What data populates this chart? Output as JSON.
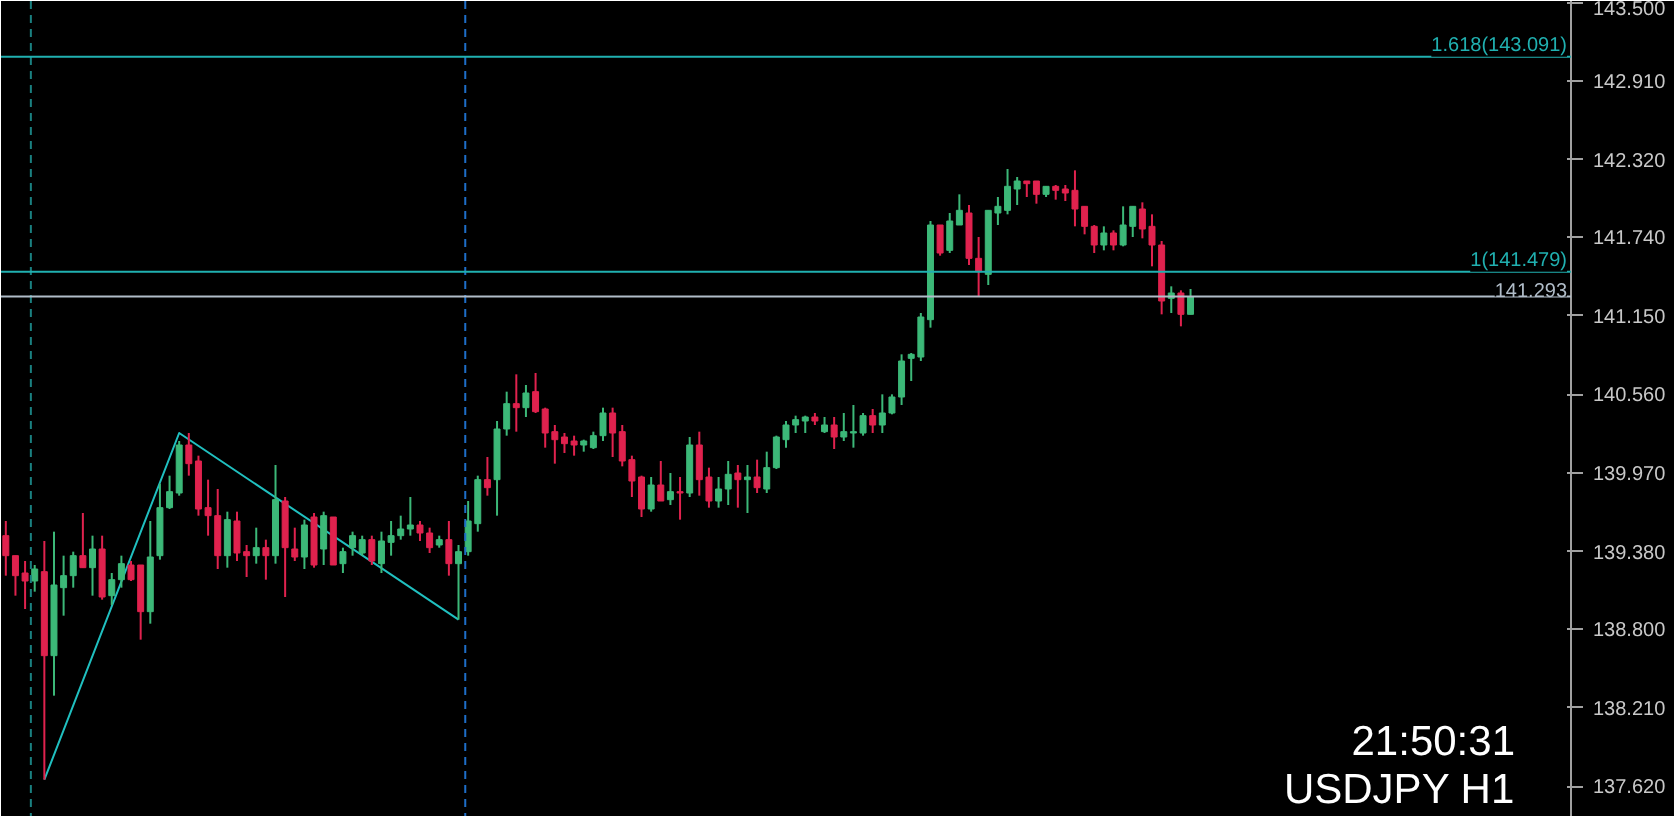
{
  "chart_data": {
    "type": "candlestick",
    "categories": [
      null,
      null,
      null,
      null,
      null,
      null,
      null,
      null,
      null,
      null,
      null,
      null,
      null,
      null,
      null,
      null,
      null,
      null,
      null,
      null,
      null,
      null,
      null,
      null,
      null,
      null,
      null,
      null,
      null,
      null,
      null,
      null,
      null,
      null,
      null,
      null,
      null,
      null,
      null,
      null,
      null,
      null,
      null,
      null,
      null,
      null,
      null,
      null,
      null,
      null,
      null,
      null,
      null,
      null,
      null,
      null,
      null,
      null,
      null,
      null,
      null,
      null,
      null,
      null,
      null,
      null,
      null,
      null,
      null,
      null,
      null,
      null,
      null,
      null,
      null,
      null,
      null,
      null,
      null,
      null,
      null,
      null,
      null,
      null,
      null,
      null,
      null,
      null,
      null,
      null,
      null,
      null,
      null,
      null,
      null,
      null,
      null,
      null,
      null,
      null,
      null,
      null,
      null,
      null,
      null,
      null,
      null,
      null,
      null,
      null,
      null,
      null,
      null,
      null,
      null,
      null,
      null,
      null,
      null,
      null,
      null,
      null,
      null,
      null,
      null,
      null,
      null,
      null,
      null,
      null,
      null,
      null,
      null,
      null,
      null,
      null,
      null,
      null,
      null,
      null,
      null,
      null,
      null,
      null,
      null,
      null,
      null,
      null,
      null,
      null,
      null,
      null,
      null,
      null,
      null,
      null,
      null,
      null,
      null,
      null,
      null,
      null,
      null
    ],
    "ohlc": [
      [
        139.5,
        139.61,
        139.2,
        139.35
      ],
      [
        139.35,
        139.35,
        139.05,
        139.2
      ],
      [
        139.22,
        139.31,
        138.95,
        139.16
      ],
      [
        139.16,
        139.28,
        139.08,
        139.25
      ],
      [
        139.23,
        139.46,
        137.67,
        138.6
      ],
      [
        138.6,
        139.53,
        138.3,
        139.13
      ],
      [
        139.11,
        139.35,
        138.9,
        139.2
      ],
      [
        139.2,
        139.38,
        139.11,
        139.35
      ],
      [
        139.35,
        139.67,
        139.26,
        139.26
      ],
      [
        139.26,
        139.5,
        139.05,
        139.4
      ],
      [
        139.4,
        139.5,
        139.02,
        139.04
      ],
      [
        139.05,
        139.22,
        138.98,
        139.17
      ],
      [
        139.17,
        139.35,
        139.11,
        139.29
      ],
      [
        139.28,
        139.31,
        139.16,
        139.17
      ],
      [
        139.28,
        139.28,
        138.72,
        138.93
      ],
      [
        138.93,
        139.61,
        138.84,
        139.34
      ],
      [
        139.35,
        139.89,
        139.32,
        139.71
      ],
      [
        139.71,
        139.95,
        139.7,
        139.83
      ],
      [
        139.82,
        140.21,
        139.8,
        140.18
      ],
      [
        140.18,
        140.27,
        139.95,
        140.04
      ],
      [
        140.06,
        140.1,
        139.65,
        139.7
      ],
      [
        139.71,
        139.92,
        139.5,
        139.65
      ],
      [
        139.65,
        139.85,
        139.25,
        139.35
      ],
      [
        139.35,
        139.68,
        139.26,
        139.62
      ],
      [
        139.61,
        139.68,
        139.31,
        139.37
      ],
      [
        139.38,
        139.43,
        139.19,
        139.35
      ],
      [
        139.35,
        139.56,
        139.29,
        139.41
      ],
      [
        139.41,
        139.47,
        139.17,
        139.35
      ],
      [
        139.35,
        140.03,
        139.29,
        139.77
      ],
      [
        139.76,
        139.79,
        139.04,
        139.41
      ],
      [
        139.4,
        139.56,
        139.31,
        139.34
      ],
      [
        139.34,
        139.62,
        139.25,
        139.58
      ],
      [
        139.64,
        139.67,
        139.26,
        139.28
      ],
      [
        139.4,
        139.68,
        139.28,
        139.65
      ],
      [
        139.64,
        139.64,
        139.28,
        139.28
      ],
      [
        139.29,
        139.41,
        139.22,
        139.38
      ],
      [
        139.41,
        139.53,
        139.35,
        139.5
      ],
      [
        139.37,
        139.5,
        139.35,
        139.47
      ],
      [
        139.47,
        139.5,
        139.28,
        139.31
      ],
      [
        139.29,
        139.53,
        139.22,
        139.46
      ],
      [
        139.45,
        139.61,
        139.35,
        139.5
      ],
      [
        139.5,
        139.65,
        139.47,
        139.55
      ],
      [
        139.55,
        139.79,
        139.5,
        139.58
      ],
      [
        139.58,
        139.61,
        139.46,
        139.52
      ],
      [
        139.52,
        139.56,
        139.37,
        139.41
      ],
      [
        139.43,
        139.5,
        139.41,
        139.47
      ],
      [
        139.47,
        139.61,
        139.2,
        139.29
      ],
      [
        139.29,
        139.43,
        138.87,
        139.38
      ],
      [
        139.38,
        139.76,
        139.35,
        139.61
      ],
      [
        139.59,
        139.95,
        139.53,
        139.92
      ],
      [
        139.92,
        140.09,
        139.8,
        139.86
      ],
      [
        139.92,
        140.36,
        139.65,
        140.3
      ],
      [
        140.3,
        140.58,
        140.25,
        140.49
      ],
      [
        140.49,
        140.71,
        140.28,
        140.46
      ],
      [
        140.46,
        140.63,
        140.39,
        140.57
      ],
      [
        140.58,
        140.72,
        140.42,
        140.43
      ],
      [
        140.45,
        140.46,
        140.16,
        140.27
      ],
      [
        140.28,
        140.33,
        140.04,
        140.22
      ],
      [
        140.24,
        140.27,
        140.12,
        140.19
      ],
      [
        140.21,
        140.25,
        140.1,
        140.18
      ],
      [
        140.18,
        140.22,
        140.13,
        140.21
      ],
      [
        140.16,
        140.28,
        140.15,
        140.25
      ],
      [
        140.25,
        140.46,
        140.21,
        140.42
      ],
      [
        140.42,
        140.46,
        140.09,
        140.27
      ],
      [
        140.28,
        140.33,
        140.02,
        140.06
      ],
      [
        140.07,
        140.1,
        139.79,
        139.91
      ],
      [
        139.94,
        139.95,
        139.64,
        139.7
      ],
      [
        139.7,
        139.94,
        139.68,
        139.88
      ],
      [
        139.88,
        140.06,
        139.76,
        139.76
      ],
      [
        139.77,
        139.97,
        139.73,
        139.83
      ],
      [
        139.83,
        139.94,
        139.62,
        139.82
      ],
      [
        139.82,
        140.24,
        139.79,
        140.18
      ],
      [
        140.18,
        140.28,
        139.8,
        139.92
      ],
      [
        139.94,
        140.01,
        139.71,
        139.76
      ],
      [
        139.76,
        139.94,
        139.71,
        139.85
      ],
      [
        139.85,
        140.06,
        139.73,
        139.96
      ],
      [
        139.97,
        140.03,
        139.71,
        139.92
      ],
      [
        139.92,
        140.03,
        139.67,
        139.94
      ],
      [
        139.94,
        140.07,
        139.82,
        139.86
      ],
      [
        139.85,
        140.13,
        139.82,
        140.01
      ],
      [
        140.01,
        140.25,
        140.0,
        140.24
      ],
      [
        140.22,
        140.36,
        140.16,
        140.33
      ],
      [
        140.33,
        140.4,
        140.27,
        140.37
      ],
      [
        140.36,
        140.4,
        140.27,
        140.39
      ],
      [
        140.39,
        140.42,
        140.33,
        140.36
      ],
      [
        140.28,
        140.39,
        140.27,
        140.33
      ],
      [
        140.33,
        140.39,
        140.15,
        140.24
      ],
      [
        140.24,
        140.42,
        140.21,
        140.28
      ],
      [
        140.27,
        140.48,
        140.16,
        140.28
      ],
      [
        140.27,
        140.42,
        140.25,
        140.4
      ],
      [
        140.4,
        140.45,
        140.27,
        140.33
      ],
      [
        140.33,
        140.56,
        140.27,
        140.42
      ],
      [
        140.42,
        140.56,
        140.41,
        140.54
      ],
      [
        140.54,
        140.86,
        140.48,
        140.81
      ],
      [
        140.83,
        140.87,
        140.66,
        140.86
      ],
      [
        140.84,
        141.17,
        140.81,
        141.14
      ],
      [
        141.12,
        141.86,
        141.06,
        141.83
      ],
      [
        141.83,
        141.83,
        141.6,
        141.62
      ],
      [
        141.64,
        141.92,
        141.62,
        141.86
      ],
      [
        141.83,
        142.06,
        141.83,
        141.94
      ],
      [
        141.92,
        141.98,
        141.53,
        141.58
      ],
      [
        141.58,
        141.74,
        141.29,
        141.48
      ],
      [
        141.46,
        141.94,
        141.38,
        141.94
      ],
      [
        141.92,
        142.04,
        141.83,
        141.97
      ],
      [
        141.94,
        142.25,
        141.91,
        142.12
      ],
      [
        142.1,
        142.19,
        141.98,
        142.16
      ],
      [
        142.16,
        142.16,
        142.04,
        142.14
      ],
      [
        142.16,
        142.16,
        141.99,
        142.06
      ],
      [
        142.06,
        142.12,
        142.04,
        142.12
      ],
      [
        142.12,
        142.13,
        142.02,
        142.09
      ],
      [
        142.1,
        142.13,
        142.01,
        142.07
      ],
      [
        142.09,
        142.24,
        141.82,
        141.95
      ],
      [
        141.97,
        141.97,
        141.76,
        141.82
      ],
      [
        141.82,
        141.83,
        141.62,
        141.68
      ],
      [
        141.68,
        141.82,
        141.64,
        141.77
      ],
      [
        141.77,
        141.79,
        141.64,
        141.68
      ],
      [
        141.68,
        141.97,
        141.67,
        141.83
      ],
      [
        141.82,
        141.97,
        141.74,
        141.97
      ],
      [
        141.95,
        142.0,
        141.73,
        141.8
      ],
      [
        141.82,
        141.91,
        141.52,
        141.68
      ],
      [
        141.68,
        141.71,
        141.16,
        141.26
      ],
      [
        141.28,
        141.37,
        141.17,
        141.32
      ],
      [
        141.32,
        141.34,
        141.07,
        141.16
      ],
      [
        141.16,
        141.35,
        141.16,
        141.29
      ],
      null,
      null,
      null,
      null,
      null,
      null,
      null,
      null,
      null,
      null,
      null,
      null,
      null,
      null,
      null,
      null,
      null,
      null,
      null,
      null,
      null,
      null,
      null,
      null,
      null,
      null,
      null,
      null,
      null,
      null,
      null,
      null,
      null,
      null,
      null,
      null,
      null,
      null,
      null
    ],
    "colors": [
      "#e0224e",
      "#e0224e",
      "#e0224e",
      "#3cb878",
      "#e0224e",
      "#3cb878",
      "#3cb878",
      "#3cb878",
      "#e0224e",
      "#3cb878",
      "#e0224e",
      "#3cb878",
      "#3cb878",
      "#e0224e",
      "#e0224e",
      "#3cb878",
      "#3cb878",
      "#3cb878",
      "#3cb878",
      "#e0224e",
      "#e0224e",
      "#e0224e",
      "#e0224e",
      "#3cb878",
      "#e0224e",
      "#e0224e",
      "#3cb878",
      "#e0224e",
      "#3cb878",
      "#e0224e",
      "#e0224e",
      "#3cb878",
      "#e0224e",
      "#3cb878",
      "#e0224e",
      "#3cb878",
      "#3cb878",
      "#3cb878",
      "#e0224e",
      "#3cb878",
      "#3cb878",
      "#3cb878",
      "#3cb878",
      "#e0224e",
      "#e0224e",
      "#3cb878",
      "#e0224e",
      "#3cb878",
      "#3cb878",
      "#3cb878",
      "#e0224e",
      "#3cb878",
      "#3cb878",
      "#e0224e",
      "#3cb878",
      "#e0224e",
      "#e0224e",
      "#e0224e",
      "#e0224e",
      "#e0224e",
      "#3cb878",
      "#3cb878",
      "#3cb878",
      "#e0224e",
      "#e0224e",
      "#e0224e",
      "#e0224e",
      "#3cb878",
      "#e0224e",
      "#3cb878",
      "#e0224e",
      "#3cb878",
      "#e0224e",
      "#e0224e",
      "#3cb878",
      "#3cb878",
      "#e0224e",
      "#3cb878",
      "#e0224e",
      "#3cb878",
      "#3cb878",
      "#3cb878",
      "#3cb878",
      "#3cb878",
      "#e0224e",
      "#3cb878",
      "#e0224e",
      "#3cb878",
      "#3cb878",
      "#3cb878",
      "#e0224e",
      "#3cb878",
      "#3cb878",
      "#3cb878",
      "#3cb878",
      "#3cb878",
      "#3cb878",
      "#e0224e",
      "#3cb878",
      "#3cb878",
      "#e0224e",
      "#e0224e",
      "#3cb878",
      "#3cb878",
      "#3cb878",
      "#3cb878",
      "#e0224e",
      "#e0224e",
      "#3cb878",
      "#e0224e",
      "#e0224e",
      "#e0224e",
      "#e0224e",
      "#e0224e",
      "#3cb878",
      "#e0224e",
      "#3cb878",
      "#3cb878",
      "#e0224e",
      "#e0224e",
      "#e0224e",
      "#3cb878",
      "#e0224e",
      "#3cb878",
      null,
      null,
      null,
      null,
      null,
      null,
      null,
      null,
      null,
      null,
      null,
      null,
      null,
      null,
      null,
      null,
      null,
      null,
      null,
      null,
      null,
      null,
      null,
      null,
      null,
      null,
      null,
      null,
      null,
      null,
      null,
      null,
      null,
      null,
      null,
      null,
      null,
      null,
      null
    ],
    "series": [
      {
        "type": "line",
        "values": [
          null,
          null,
          null,
          null,
          137.67,
          null,
          null,
          null,
          null,
          null,
          null,
          null,
          null,
          null,
          null,
          null,
          null,
          null,
          140.27,
          null,
          null,
          null,
          null,
          null,
          null,
          null,
          null,
          null,
          null,
          null,
          null,
          null,
          null,
          null,
          null,
          null,
          null,
          null,
          null,
          null,
          null,
          null,
          null,
          null,
          null,
          null,
          null,
          138.87,
          null,
          null,
          null,
          null,
          null,
          null,
          null,
          null,
          null,
          null,
          null,
          null,
          null,
          null,
          null,
          null,
          null,
          null,
          null,
          null,
          null,
          null,
          null,
          null,
          null,
          null,
          null,
          null,
          null,
          null,
          null,
          null,
          null,
          null,
          null,
          null,
          null,
          null,
          null,
          null,
          null,
          null,
          null,
          null,
          null,
          null,
          null,
          null,
          null,
          null,
          null,
          null,
          null,
          null,
          null,
          null,
          null,
          null,
          null,
          null,
          null,
          null,
          null,
          null,
          null,
          null,
          null,
          null,
          null,
          null,
          null,
          null,
          null,
          null,
          null,
          null,
          null,
          null,
          null,
          null,
          null,
          null,
          null,
          null,
          null,
          null,
          null,
          null,
          null,
          null,
          null,
          null,
          null,
          null,
          null,
          null,
          null,
          null,
          null,
          null,
          null,
          null,
          null,
          null,
          null,
          null,
          null,
          null,
          null,
          null,
          null,
          null,
          null,
          null,
          null
        ],
        "color": "#20c0c0"
      }
    ],
    "ylim": [
      137.39,
      143.51
    ],
    "yticks": [
      {
        "value": 143.5,
        "label": "143.500"
      },
      {
        "value": 142.91,
        "label": "142.910"
      },
      {
        "value": 142.32,
        "label": "142.320"
      },
      {
        "value": 141.74,
        "label": "141.740"
      },
      {
        "value": 141.15,
        "label": "141.150"
      },
      {
        "value": 140.56,
        "label": "140.560"
      },
      {
        "value": 139.97,
        "label": "139.970"
      },
      {
        "value": 139.38,
        "label": "139.380"
      },
      {
        "value": 138.8,
        "label": "138.800"
      },
      {
        "value": 138.21,
        "label": "138.210"
      },
      {
        "value": 137.62,
        "label": "137.620"
      }
    ],
    "tick_labels": "y",
    "ref_lines": [
      {
        "axis": "y",
        "value": 143.091,
        "label": "1.618(143.091)",
        "color": "#20b0b0"
      },
      {
        "axis": "y",
        "value": 141.479,
        "label": "1(141.479)",
        "color": "#20b0b0"
      },
      {
        "axis": "y",
        "value": 141.293,
        "label": "141.293",
        "color": "#b0bcc8"
      }
    ],
    "annotations": [
      "21:50:31",
      "USDJPY H1"
    ]
  }
}
